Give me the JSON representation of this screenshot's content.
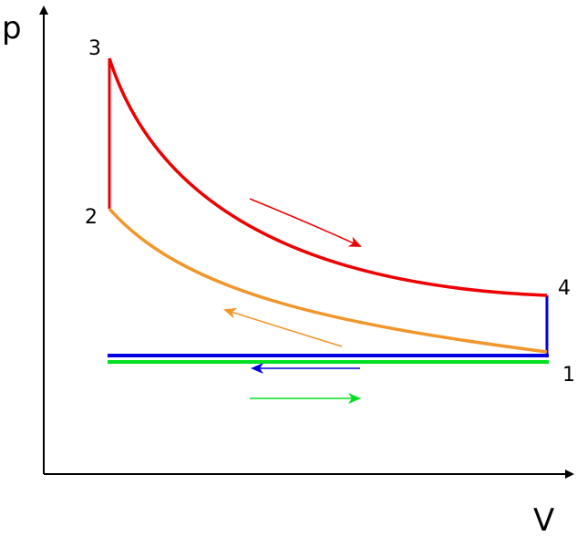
{
  "axes": {
    "y_label": "p",
    "x_label": "V"
  },
  "points": [
    {
      "label": "3"
    },
    {
      "label": "2"
    },
    {
      "label": "4"
    },
    {
      "label": "1"
    }
  ]
}
